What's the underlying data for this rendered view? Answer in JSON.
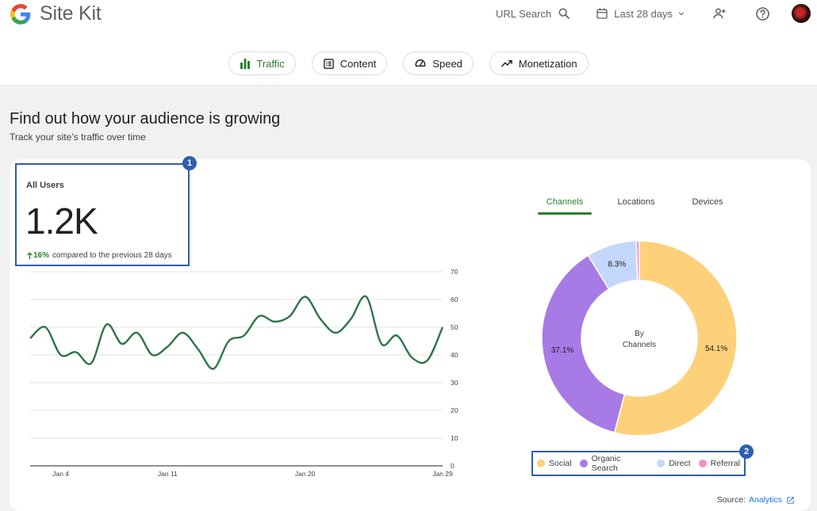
{
  "header": {
    "app_title": "Site Kit",
    "url_search_label": "URL Search",
    "date_range": "Last 28 days",
    "icons": [
      "google-g-logo",
      "search-icon",
      "calendar-icon",
      "chevron-down-icon",
      "add-user-icon",
      "help-icon",
      "avatar"
    ]
  },
  "tabs": [
    {
      "label": "Traffic",
      "icon": "bar-chart-icon",
      "active": true
    },
    {
      "label": "Content",
      "icon": "list-icon",
      "active": false
    },
    {
      "label": "Speed",
      "icon": "speedometer-icon",
      "active": false
    },
    {
      "label": "Monetization",
      "icon": "trending-up-icon",
      "active": false
    }
  ],
  "page": {
    "title": "Find out how your audience is growing",
    "subtitle": "Track your site’s traffic over time"
  },
  "metric": {
    "label": "All Users",
    "value": "1.2K",
    "change_pct": "16%",
    "change_text": "compared to the previous 28 days",
    "badge": "1"
  },
  "channel_tabs": [
    "Channels",
    "Locations",
    "Devices"
  ],
  "donut_center": [
    "By",
    "Channels"
  ],
  "legend_badge": "2",
  "source": {
    "label": "Source:",
    "link": "Analytics"
  },
  "colors": {
    "accent_green": "#2e7d32",
    "annotation_blue": "#2f5fad",
    "link_blue": "#1a73e8"
  },
  "chart_data": [
    {
      "type": "line",
      "x_tick_labels": [
        "Jan 4",
        "Jan 11",
        "Jan 20",
        "Jan 29"
      ],
      "x_tick_index": [
        2,
        9,
        18,
        27
      ],
      "y_ticks": [
        0,
        10,
        20,
        30,
        40,
        50,
        60,
        70
      ],
      "ylim": [
        0,
        70
      ],
      "grid": true,
      "series": [
        {
          "color": "#2e7547",
          "values": [
            46,
            50,
            40,
            41,
            37,
            51,
            44,
            48,
            40,
            43,
            48,
            42,
            35,
            45,
            47,
            54,
            52,
            54,
            61,
            53,
            48,
            53,
            61,
            44,
            47,
            39,
            38,
            50
          ]
        }
      ]
    },
    {
      "type": "pie",
      "center_text": "By Channels",
      "legend_position": "bottom",
      "categories": [
        "Social",
        "Organic Search",
        "Direct",
        "Referral"
      ],
      "values": [
        54.1,
        37.1,
        8.3,
        0.5
      ],
      "labels": [
        "54.1%",
        "37.1%",
        "8.3%",
        ""
      ],
      "colors": [
        "#fdd17a",
        "#a77ae5",
        "#c3d7fa",
        "#f690c8"
      ]
    }
  ]
}
